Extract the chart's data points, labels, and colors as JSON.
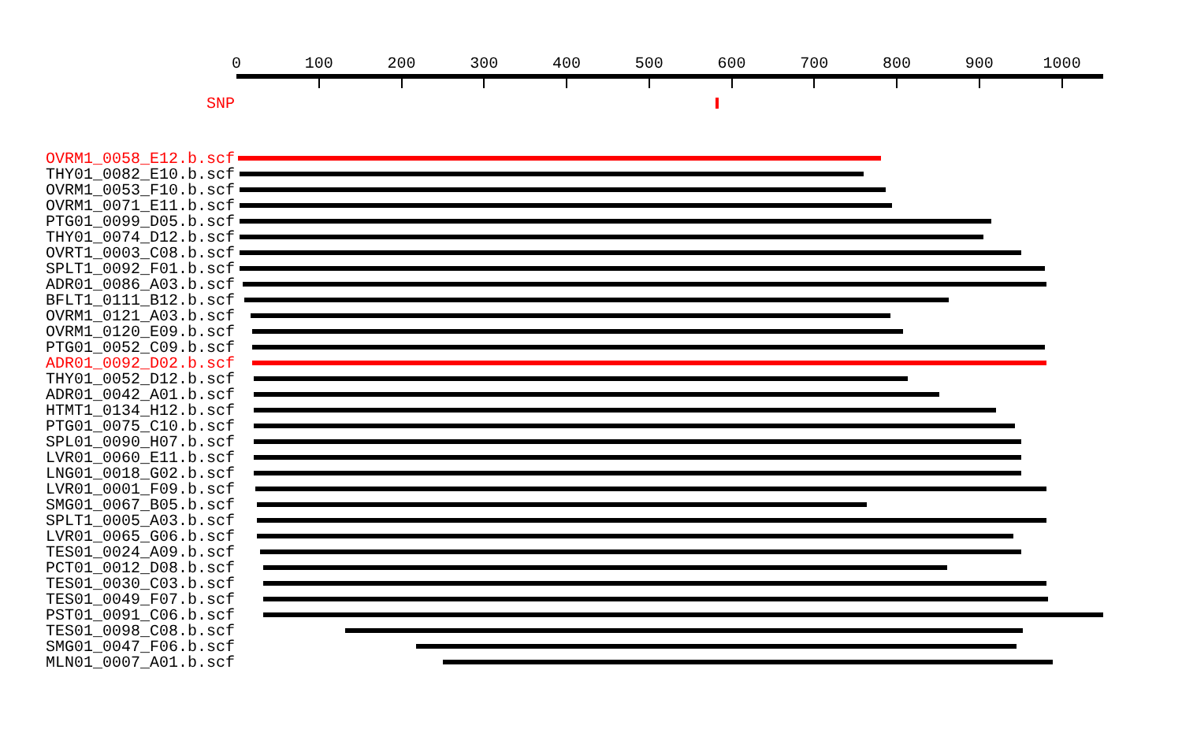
{
  "chart_data": {
    "type": "bar",
    "orientation": "horizontal",
    "xlim": [
      0,
      1050
    ],
    "xticks": [
      0,
      100,
      200,
      300,
      400,
      500,
      600,
      700,
      800,
      900,
      1000
    ],
    "categories": [
      "SNP",
      "OVRM1_0058_E12.b.scf",
      "THY01_0082_E10.b.scf",
      "OVRM1_0053_F10.b.scf",
      "OVRM1_0071_E11.b.scf",
      "PTG01_0099_D05.b.scf",
      "THY01_0074_D12.b.scf",
      "OVRT1_0003_C08.b.scf",
      "SPLT1_0092_F01.b.scf",
      "ADR01_0086_A03.b.scf",
      "BFLT1_0111_B12.b.scf",
      "OVRM1_0121_A03.b.scf",
      "OVRM1_0120_E09.b.scf",
      "PTG01_0052_C09.b.scf",
      "ADR01_0092_D02.b.scf",
      "THY01_0052_D12.b.scf",
      "ADR01_0042_A01.b.scf",
      "HTMT1_0134_H12.b.scf",
      "PTG01_0075_C10.b.scf",
      "SPL01_0090_H07.b.scf",
      "LVR01_0060_E11.b.scf",
      "LNG01_0018_G02.b.scf",
      "LVR01_0001_F09.b.scf",
      "SMG01_0067_B05.b.scf",
      "SPLT1_0005_A03.b.scf",
      "LVR01_0065_G06.b.scf",
      "TES01_0024_A09.b.scf",
      "PCT01_0012_D08.b.scf",
      "TES01_0030_C03.b.scf",
      "TES01_0049_F07.b.scf",
      "PST01_0091_C06.b.scf",
      "TES01_0098_C08.b.scf",
      "SMG01_0047_F06.b.scf",
      "MLN01_0007_A01.b.scf"
    ],
    "base": [
      580,
      2,
      4,
      4,
      4,
      4,
      4,
      4,
      4,
      8,
      10,
      17,
      19,
      19,
      19,
      21,
      21,
      21,
      21,
      21,
      21,
      21,
      23,
      25,
      25,
      25,
      29,
      32,
      32,
      32,
      32,
      131,
      217,
      250
    ],
    "values": [
      4,
      779,
      756,
      783,
      790,
      910,
      901,
      946,
      975,
      973,
      853,
      775,
      789,
      960,
      962,
      792,
      830,
      899,
      922,
      929,
      929,
      929,
      958,
      739,
      956,
      916,
      921,
      829,
      949,
      951,
      1018,
      821,
      728,
      739
    ],
    "colors": [
      "#ff0000",
      "#ff0000",
      "#000000",
      "#000000",
      "#000000",
      "#000000",
      "#000000",
      "#000000",
      "#000000",
      "#000000",
      "#000000",
      "#000000",
      "#000000",
      "#000000",
      "#ff0000",
      "#000000",
      "#000000",
      "#000000",
      "#000000",
      "#000000",
      "#000000",
      "#000000",
      "#000000",
      "#000000",
      "#000000",
      "#000000",
      "#000000",
      "#000000",
      "#000000",
      "#000000",
      "#000000",
      "#000000",
      "#000000",
      "#000000"
    ]
  }
}
